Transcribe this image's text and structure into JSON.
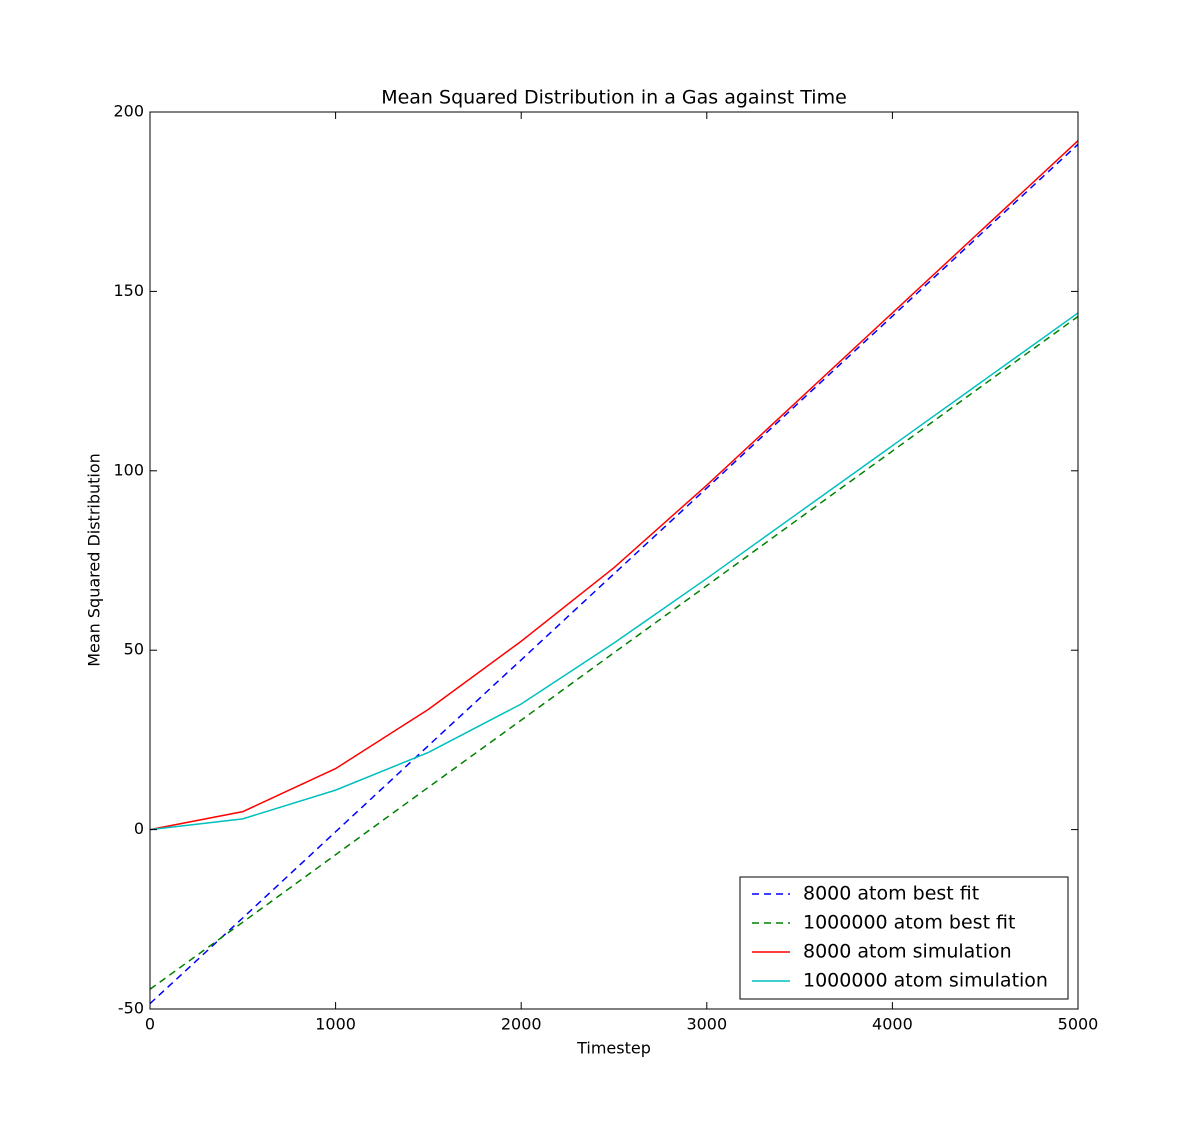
{
  "chart_data": {
    "type": "line",
    "title": "Mean Squared Distribution in a Gas against Time",
    "x_label": "Timestep",
    "y_label": "Mean Squared Distribution",
    "x": [
      0,
      500,
      1000,
      1500,
      2000,
      2500,
      3000,
      3500,
      4000,
      4500,
      5000
    ],
    "series": [
      {
        "name": "8000 atom best fit",
        "color": "#0000ff",
        "linestyle": "dashed",
        "values": [
          -48.5,
          -24.6,
          -0.6,
          23.4,
          47.3,
          71.3,
          95.2,
          119.2,
          143.1,
          167.1,
          191
        ]
      },
      {
        "name": "1000000 atom best fit",
        "color": "#008000",
        "linestyle": "dashed",
        "values": [
          -44.5,
          -25.8,
          -7,
          11.8,
          30.5,
          49.3,
          68,
          86.8,
          105.5,
          124.3,
          143
        ]
      },
      {
        "name": "8000 atom simulation",
        "color": "#ff0000",
        "linestyle": "solid",
        "values": [
          0,
          5,
          17,
          33.5,
          52.5,
          73,
          96,
          120,
          144,
          168,
          192
        ]
      },
      {
        "name": "1000000 atom simulation",
        "color": "#00bfbf",
        "linestyle": "solid",
        "values": [
          0,
          3,
          11,
          21.5,
          35,
          52,
          70,
          88.5,
          107,
          125.5,
          144
        ]
      }
    ],
    "xlim": [
      0,
      5000
    ],
    "xticks": [
      0,
      1000,
      2000,
      3000,
      4000,
      5000
    ],
    "ylim": [
      -50,
      200
    ],
    "yticks": [
      -50,
      0,
      50,
      100,
      150,
      200
    ],
    "grid": false,
    "legend": "lower right"
  }
}
